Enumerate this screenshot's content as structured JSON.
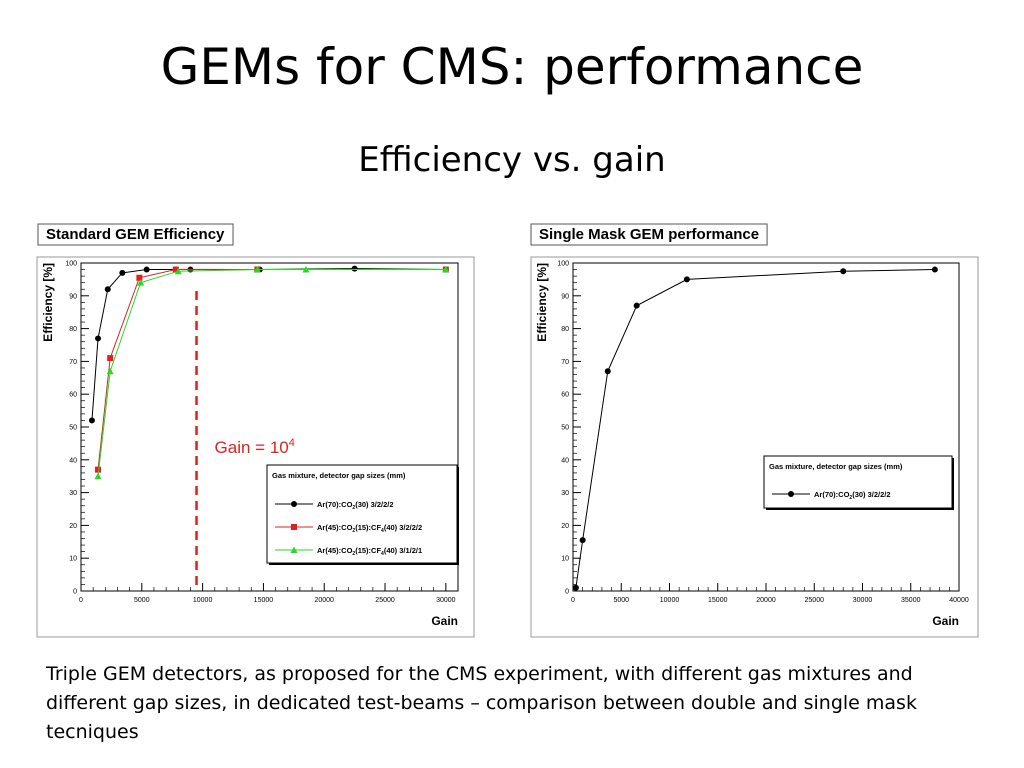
{
  "slide": {
    "title": "GEMs for CMS: performance",
    "subtitle": "Efficiency vs. gain",
    "caption": "Triple GEM detectors, as proposed for the CMS experiment, with different gas mixtures and different gap sizes, in dedicated test-beams – comparison between double and single mask tecniques"
  },
  "chart_data": [
    {
      "type": "line",
      "title": "Standard GEM Efficiency",
      "xlabel": "Gain",
      "ylabel": "Efficiency [%]",
      "xlim": [
        0,
        31000
      ],
      "ylim": [
        0,
        100
      ],
      "xticks": [
        0,
        5000,
        10000,
        15000,
        20000,
        25000,
        30000
      ],
      "yticks": [
        0,
        10,
        20,
        30,
        40,
        50,
        60,
        70,
        80,
        90,
        100
      ],
      "legend_title": "Gas mixture, detector gap sizes (mm)",
      "annotation": {
        "text": "Gain = 10",
        "sup": "4",
        "x": 9500,
        "color": "#e02020"
      },
      "series": [
        {
          "name_parts": [
            "Ar(70):CO",
            "2",
            "(30) 3/2/2/2"
          ],
          "color": "#000000",
          "marker": "circle",
          "x": [
            900,
            1400,
            2200,
            3400,
            5400,
            9000,
            14700,
            22500,
            30000
          ],
          "y": [
            52,
            77,
            92,
            97,
            98,
            98,
            98,
            98.3,
            98
          ]
        },
        {
          "name_parts": [
            "Ar(45):CO",
            "2",
            "(15):CF",
            "4",
            "(40) 3/2/2/2"
          ],
          "color": "#e02020",
          "marker": "square",
          "x": [
            1400,
            2400,
            4800,
            7800,
            14500,
            30000
          ],
          "y": [
            37,
            71,
            95.5,
            98,
            98,
            98
          ]
        },
        {
          "name_parts": [
            "Ar(45):CO",
            "2",
            "(15):CF",
            "4",
            "(40) 3/1/2/1"
          ],
          "color": "#22dd22",
          "marker": "triangle",
          "x": [
            1400,
            2400,
            4900,
            8000,
            14500,
            18500,
            30000
          ],
          "y": [
            35,
            67,
            94,
            97.5,
            98,
            98,
            98
          ]
        }
      ]
    },
    {
      "type": "line",
      "title": "Single Mask GEM performance",
      "xlabel": "Gain",
      "ylabel": "Efficiency [%]",
      "xlim": [
        0,
        40000
      ],
      "ylim": [
        0,
        100
      ],
      "xticks": [
        0,
        5000,
        10000,
        15000,
        20000,
        25000,
        30000,
        35000,
        40000
      ],
      "yticks": [
        0,
        10,
        20,
        30,
        40,
        50,
        60,
        70,
        80,
        90,
        100
      ],
      "legend_title": "Gas mixture, detector gap sizes (mm)",
      "series": [
        {
          "name_parts": [
            "Ar(70):CO",
            "2",
            "(30) 3/2/2/2"
          ],
          "color": "#000000",
          "marker": "circle",
          "x": [
            300,
            1000,
            3600,
            6600,
            11800,
            28000,
            37500
          ],
          "y": [
            1,
            15.5,
            67,
            87,
            95,
            97.5,
            98
          ]
        }
      ]
    }
  ]
}
